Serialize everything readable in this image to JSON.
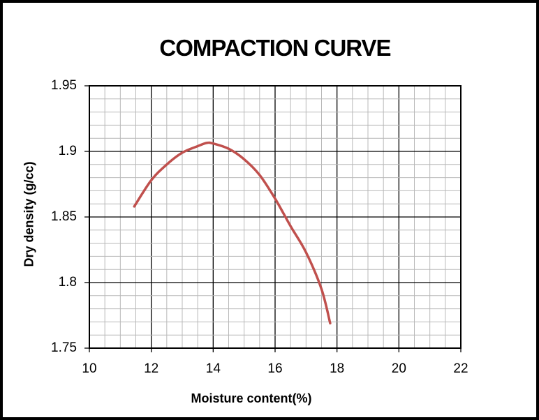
{
  "window": {
    "background": "#ffffff",
    "frame_border_color": "#000000"
  },
  "chart_data": {
    "type": "line",
    "title": "COMPACTION CURVE",
    "xlabel": "Moisture content(%)",
    "ylabel": "Dry density (g/cc)",
    "xlim": [
      10,
      22
    ],
    "ylim": [
      1.75,
      1.95
    ],
    "x_major_step": 2,
    "x_minor_step": 0.5,
    "y_major_step": 0.05,
    "y_minor_step": 0.01,
    "x_ticks": [
      "10",
      "12",
      "14",
      "16",
      "18",
      "20",
      "22"
    ],
    "y_ticks": [
      "1.95",
      "1.9",
      "1.85",
      "1.8",
      "1.75"
    ],
    "grid": "major-black-and-minor-gray",
    "legend": "none",
    "markers": "none",
    "colors": {
      "major_grid": "#000000",
      "minor_grid": "#b8b8b8",
      "axis": "#000000",
      "text": "#000000",
      "plot_background": "#ffffff"
    },
    "series": [
      {
        "name": "compaction-curve",
        "color": "#C0504D",
        "smooth": true,
        "stroke_width": 3.5,
        "points": [
          [
            11.45,
            1.858
          ],
          [
            12.0,
            1.878
          ],
          [
            12.5,
            1.89
          ],
          [
            13.0,
            1.899
          ],
          [
            13.5,
            1.904
          ],
          [
            13.8,
            1.9065
          ],
          [
            14.0,
            1.906
          ],
          [
            14.5,
            1.902
          ],
          [
            15.0,
            1.894
          ],
          [
            15.5,
            1.882
          ],
          [
            16.0,
            1.864
          ],
          [
            16.5,
            1.843
          ],
          [
            17.0,
            1.823
          ],
          [
            17.5,
            1.795
          ],
          [
            17.78,
            1.769
          ]
        ]
      }
    ]
  }
}
